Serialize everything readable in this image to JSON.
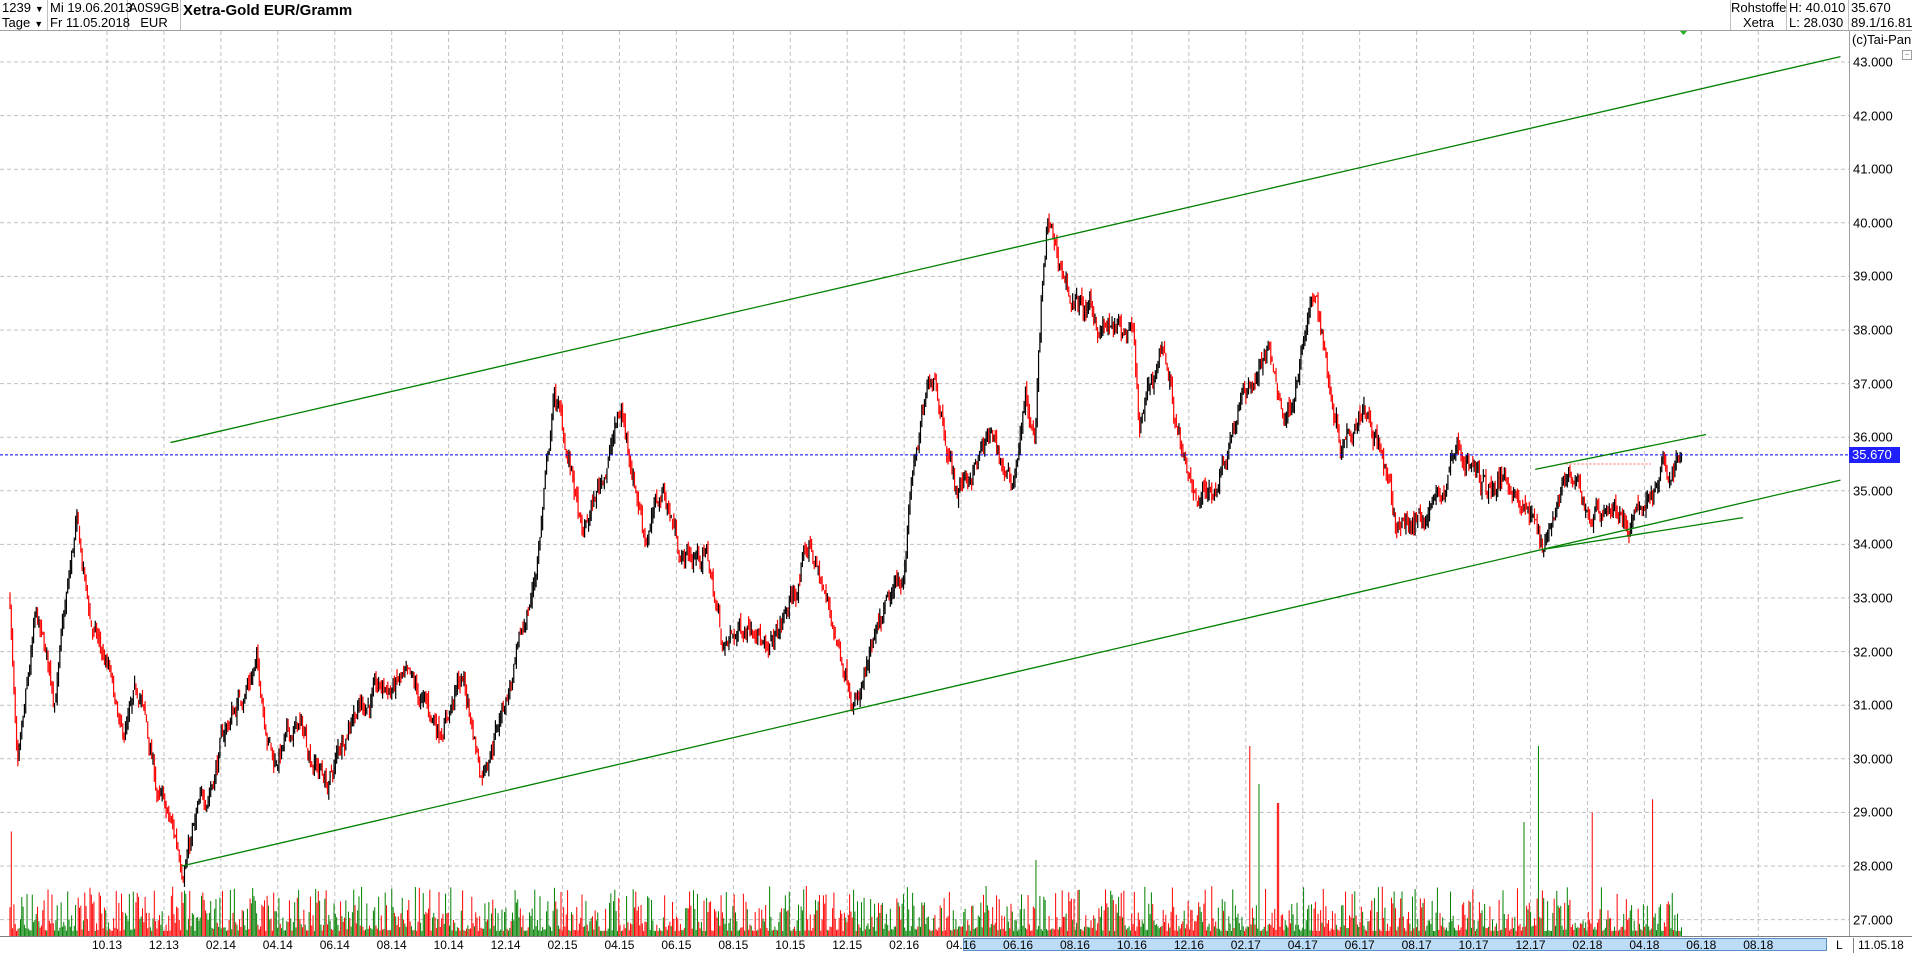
{
  "header": {
    "count": "1239",
    "period": "Tage",
    "start_date": "Mi 19.06.2013",
    "end_date": "Fr 11.05.2018",
    "wkn": "A0S9GB",
    "currency": "EUR",
    "title": "Xetra-Gold EUR/Gramm",
    "category": "Rohstoffe",
    "exchange": "Xetra",
    "high": "H: 40.010",
    "low": "L: 28.030",
    "last": "35.670",
    "ratio": "89.1/16.81",
    "copyright": "(c)Tai-Pan"
  },
  "axis_footer": {
    "l_label": "L",
    "date": "11.05.18"
  },
  "colors": {
    "up": "#000000",
    "down": "#ff0000",
    "trendline": "#008000",
    "last_line": "#0000ff",
    "vol_up": "#008000",
    "vol_down": "#ff0000",
    "grid": "#c0c0c0"
  },
  "chart_data": {
    "type": "candlestick",
    "title": "Xetra-Gold EUR/Gramm",
    "ylim": [
      27,
      43
    ],
    "yticks": [
      "43.000",
      "42.000",
      "41.000",
      "40.000",
      "39.000",
      "38.000",
      "37.000",
      "36.000",
      "35.000",
      "34.000",
      "33.000",
      "32.000",
      "31.000",
      "30.000",
      "29.000",
      "28.000",
      "27.000"
    ],
    "xticks": [
      "10.13",
      "12.13",
      "02.14",
      "04.14",
      "06.14",
      "08.14",
      "10.14",
      "12.14",
      "02.15",
      "04.15",
      "06.15",
      "08.15",
      "10.15",
      "12.15",
      "02.16",
      "04.16",
      "06.16",
      "08.16",
      "10.16",
      "12.16",
      "02.17",
      "04.17",
      "06.17",
      "08.17",
      "10.17",
      "12.17",
      "02.18",
      "04.18",
      "06.18",
      "08.18"
    ],
    "grid": true,
    "last_value": 35.67,
    "last_value_label": "35.670",
    "price_path": [
      [
        "2013-06-19",
        33.0
      ],
      [
        "2013-06-27",
        29.5
      ],
      [
        "2013-07-16",
        32.5
      ],
      [
        "2013-08-06",
        31.2
      ],
      [
        "2013-08-29",
        34.3
      ],
      [
        "2013-09-14",
        32.5
      ],
      [
        "2013-10-04",
        31.5
      ],
      [
        "2013-10-16",
        30.2
      ],
      [
        "2013-11-06",
        31.2
      ],
      [
        "2013-11-25",
        29.3
      ],
      [
        "2013-12-21",
        28.1
      ],
      [
        "2014-01-16",
        29.3
      ],
      [
        "2014-02-05",
        30.5
      ],
      [
        "2014-03-08",
        31.8
      ],
      [
        "2014-03-27",
        30.0
      ],
      [
        "2014-04-23",
        30.6
      ],
      [
        "2014-05-25",
        29.5
      ],
      [
        "2014-06-20",
        31.0
      ],
      [
        "2014-08-12",
        31.4
      ],
      [
        "2014-09-21",
        30.6
      ],
      [
        "2014-10-16",
        31.5
      ],
      [
        "2014-11-05",
        29.8
      ],
      [
        "2014-12-14",
        31.8
      ],
      [
        "2015-01-03",
        33.5
      ],
      [
        "2015-01-23",
        36.8
      ],
      [
        "2015-02-12",
        35.2
      ],
      [
        "2015-02-22",
        34.0
      ],
      [
        "2015-04-03",
        36.5
      ],
      [
        "2015-04-29",
        34.2
      ],
      [
        "2015-05-18",
        35.0
      ],
      [
        "2015-06-07",
        33.8
      ],
      [
        "2015-07-03",
        33.8
      ],
      [
        "2015-07-22",
        32.0
      ],
      [
        "2015-08-25",
        32.8
      ],
      [
        "2015-09-07",
        31.8
      ],
      [
        "2015-10-09",
        33.2
      ],
      [
        "2015-10-22",
        34.0
      ],
      [
        "2015-11-24",
        32.0
      ],
      [
        "2015-12-13",
        31.1
      ],
      [
        "2016-01-09",
        32.5
      ],
      [
        "2016-01-29",
        33.3
      ],
      [
        "2016-02-11",
        35.5
      ],
      [
        "2016-03-03",
        37.3
      ],
      [
        "2016-03-27",
        35.0
      ],
      [
        "2016-04-16",
        35.5
      ],
      [
        "2016-05-05",
        36.0
      ],
      [
        "2016-05-24",
        35.0
      ],
      [
        "2016-06-09",
        36.8
      ],
      [
        "2016-06-19",
        35.8
      ],
      [
        "2016-06-26",
        38.5
      ],
      [
        "2016-07-02",
        39.9
      ],
      [
        "2016-07-28",
        38.6
      ],
      [
        "2016-08-24",
        38.1
      ],
      [
        "2016-10-02",
        37.8
      ],
      [
        "2016-10-09",
        36.0
      ],
      [
        "2016-11-04",
        37.8
      ],
      [
        "2016-11-30",
        35.0
      ],
      [
        "2016-12-26",
        35.0
      ],
      [
        "2017-01-22",
        36.5
      ],
      [
        "2017-02-24",
        37.6
      ],
      [
        "2017-03-13",
        36.3
      ],
      [
        "2017-04-15",
        38.7
      ],
      [
        "2017-04-28",
        37.2
      ],
      [
        "2017-05-11",
        36.0
      ],
      [
        "2017-06-06",
        36.8
      ],
      [
        "2017-06-20",
        36.0
      ],
      [
        "2017-07-09",
        34.3
      ],
      [
        "2017-08-04",
        34.5
      ],
      [
        "2017-08-31",
        35.0
      ],
      [
        "2017-09-13",
        35.9
      ],
      [
        "2017-10-15",
        35.0
      ],
      [
        "2017-11-11",
        35.3
      ],
      [
        "2017-12-13",
        34.0
      ],
      [
        "2018-01-08",
        35.3
      ],
      [
        "2018-02-04",
        34.5
      ],
      [
        "2018-02-23",
        34.8
      ],
      [
        "2018-03-20",
        34.3
      ],
      [
        "2018-04-08",
        35.0
      ],
      [
        "2018-05-11",
        35.67
      ]
    ],
    "trendlines": [
      {
        "from": [
          "2013-12-08",
          35.9
        ],
        "to": [
          "2018-10-28",
          43.1
        ]
      },
      {
        "from": [
          "2013-12-20",
          28.0
        ],
        "to": [
          "2018-10-28",
          35.2
        ]
      },
      {
        "from": [
          "2017-12-06",
          35.4
        ],
        "to": [
          "2018-06-06",
          36.05
        ]
      },
      {
        "from": [
          "2017-12-12",
          33.9
        ],
        "to": [
          "2018-07-15",
          34.5
        ]
      }
    ],
    "resistance_dotted": {
      "from": "2018-01-08",
      "to": "2018-04-08",
      "value": 35.5
    },
    "volume_spikes": [
      [
        "2013-06-20",
        0.55
      ],
      [
        "2016-06-20",
        0.4
      ],
      [
        "2017-02-05",
        1.0
      ],
      [
        "2017-02-15",
        0.8
      ],
      [
        "2017-03-05",
        0.7
      ],
      [
        "2017-12-10",
        1.0
      ],
      [
        "2017-11-25",
        0.6
      ],
      [
        "2018-02-06",
        0.65
      ],
      [
        "2018-04-10",
        0.72
      ]
    ]
  }
}
